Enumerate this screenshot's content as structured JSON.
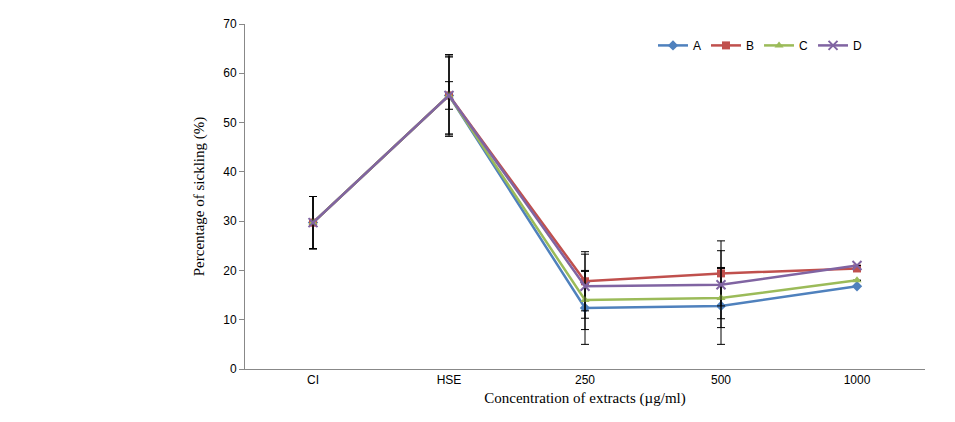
{
  "chart_data": {
    "type": "line",
    "x_label": "Concentration of extracts (µg/ml)",
    "y_label": "Percentage of sickling (%)",
    "categories": [
      "CI",
      "HSE",
      "250",
      "500",
      "1000"
    ],
    "series": [
      {
        "name": "A",
        "color": "#4F81BD",
        "marker": "diamond",
        "values": [
          29.7,
          55.5,
          12.4,
          12.8,
          16.8
        ],
        "error": [
          5.3,
          8.0,
          7.4,
          7.8,
          null
        ]
      },
      {
        "name": "B",
        "color": "#C0504D",
        "marker": "square",
        "values": [
          29.7,
          55.5,
          17.8,
          19.4,
          20.4
        ],
        "error": [
          5.3,
          8.3,
          6.0,
          6.6,
          null
        ]
      },
      {
        "name": "C",
        "color": "#9BBB59",
        "marker": "triangle",
        "values": [
          29.7,
          55.5,
          14.0,
          14.4,
          18.0
        ],
        "error": [
          5.3,
          2.8,
          6.0,
          6.0,
          null
        ]
      },
      {
        "name": "D",
        "color": "#8064A2",
        "marker": "x",
        "values": [
          29.7,
          55.5,
          16.8,
          17.1,
          21.0
        ],
        "error": [
          5.3,
          7.8,
          6.5,
          6.9,
          null
        ]
      }
    ],
    "ylim": [
      0,
      70
    ],
    "yticks": [
      0,
      10,
      20,
      30,
      40,
      50,
      60,
      70
    ],
    "grid": false,
    "legend": "top right"
  }
}
